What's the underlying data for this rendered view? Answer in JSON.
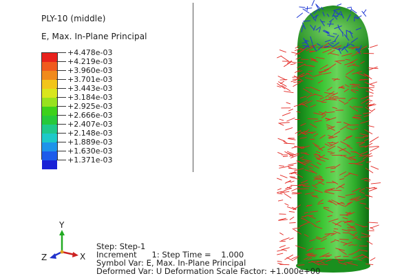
{
  "legend": {
    "title": "PLY-10 (middle)",
    "variable": "E, Max. In-Plane Principal",
    "ticks": [
      "+4.478e-03",
      "+4.219e-03",
      "+3.960e-03",
      "+3.701e-03",
      "+3.443e-03",
      "+3.184e-03",
      "+2.925e-03",
      "+2.666e-03",
      "+2.407e-03",
      "+2.148e-03",
      "+1.889e-03",
      "+1.630e-03",
      "+1.371e-03"
    ],
    "colors": [
      "#e8211c",
      "#f05a1e",
      "#f08a1c",
      "#f2c51a",
      "#d9e61d",
      "#98e21e",
      "#3dd11a",
      "#26c93a",
      "#1fc98a",
      "#1dc9c9",
      "#1e94ea",
      "#1d5ceb",
      "#1a22d6"
    ]
  },
  "triad": {
    "x": "X",
    "y": "Y",
    "z": "Z",
    "x_color": "#cc2222",
    "y_color": "#22aa22",
    "z_color": "#2233cc"
  },
  "status": {
    "step": "Step: Step-1",
    "increment": "Increment      1: Step Time =    1.000",
    "symbol_var": "Symbol Var: E, Max. In-Plane Principal",
    "deformed": "Deformed Var: U  Deformation Scale Factor: +1.000e+00"
  },
  "model": {
    "body_color": "#2fb82a",
    "vector_color": "#e2241f",
    "cap_vector_color": "#1c36d4"
  }
}
